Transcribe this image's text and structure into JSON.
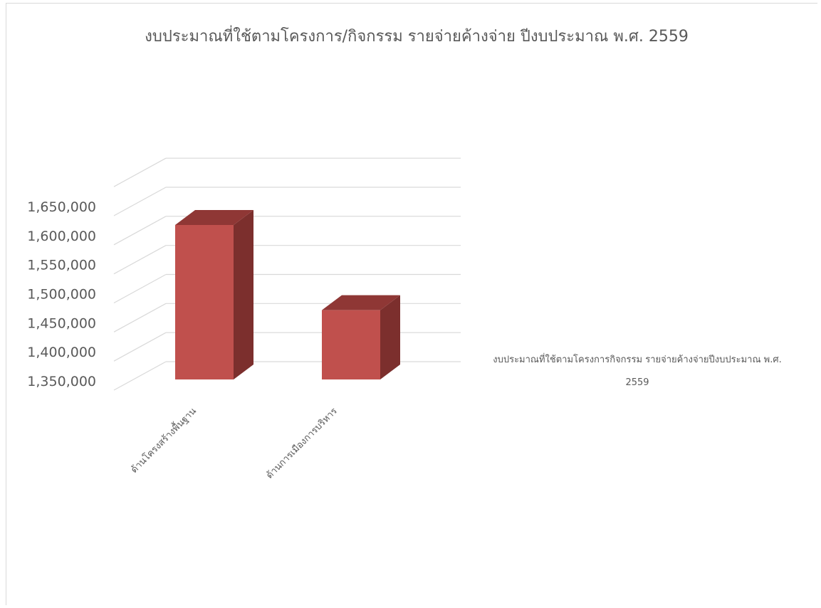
{
  "chart_data": {
    "type": "bar",
    "title": "งบประมาณที่ใช้ตามโครงการ/กิจกรรม รายจ่ายค้างจ่าย ปีงบประมาณ พ.ศ. 2559",
    "categories": [
      "ด้านโครงสร้างพื้นฐาน",
      "ด้านการเมืองการบริหาร"
    ],
    "series": [
      {
        "name": "งบประมาณที่ใช้ตามโครงการกิจกรรม รายจ่ายค้างจ่ายปีงบประมาณ พ.ศ. 2559",
        "values": [
          1622000,
          1472000
        ],
        "color": "#c0504d"
      }
    ],
    "ylim": [
      1350000,
      1650000
    ],
    "yticks": [
      "1,350,000",
      "1,400,000",
      "1,450,000",
      "1,500,000",
      "1,550,000",
      "1,600,000",
      "1,650,000"
    ],
    "ytick_values": [
      1350000,
      1400000,
      1450000,
      1500000,
      1550000,
      1600000,
      1650000
    ],
    "grid": true,
    "legend_position": "right",
    "legend_lines": [
      "งบประมาณที่ใช้ตามโครงการกิจกรรม รายจ่ายค้างจ่ายปีงบประมาณ พ.ศ.",
      "2559"
    ],
    "projection": "3d",
    "xlabel": "",
    "ylabel": ""
  }
}
